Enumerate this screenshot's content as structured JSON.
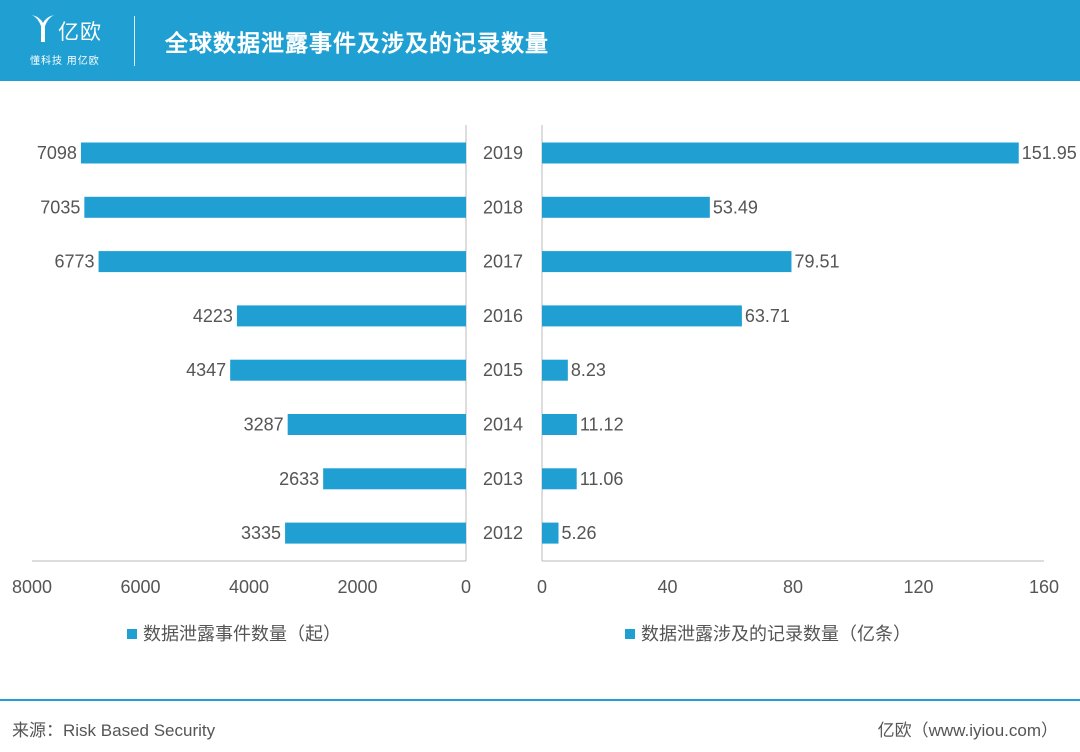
{
  "header": {
    "logo_name": "亿欧",
    "logo_slogan": "懂科技 用亿欧",
    "title": "全球数据泄露事件及涉及的记录数量"
  },
  "colors": {
    "accent": "#1f9fd2",
    "text": "#555555",
    "axis": "#bbbbbb"
  },
  "chart_data": [
    {
      "type": "bar",
      "orientation": "horizontal",
      "direction": "right-to-left",
      "categories": [
        "2019",
        "2018",
        "2017",
        "2016",
        "2015",
        "2014",
        "2013",
        "2012"
      ],
      "values": [
        7098,
        7035,
        6773,
        4223,
        4347,
        3287,
        2633,
        3335
      ],
      "series_name": "数据泄露事件数量（起）",
      "xlim": [
        0,
        8000
      ],
      "xticks": [
        8000,
        6000,
        4000,
        2000,
        0
      ],
      "legend": "bottom"
    },
    {
      "type": "bar",
      "orientation": "horizontal",
      "direction": "left-to-right",
      "categories": [
        "2019",
        "2018",
        "2017",
        "2016",
        "2015",
        "2014",
        "2013",
        "2012"
      ],
      "values": [
        151.95,
        53.49,
        79.51,
        63.71,
        8.23,
        11.12,
        11.06,
        5.26
      ],
      "series_name": "数据泄露涉及的记录数量（亿条）",
      "xlim": [
        0,
        160
      ],
      "xticks": [
        0,
        40,
        80,
        120,
        160
      ],
      "legend": "bottom"
    }
  ],
  "footer": {
    "source": "来源：Risk Based Security",
    "credit": "亿欧（www.iyiou.com）"
  }
}
